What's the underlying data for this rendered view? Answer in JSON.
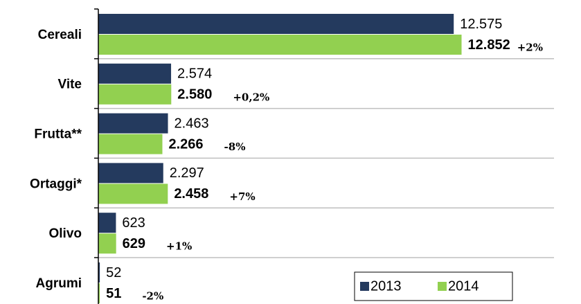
{
  "chart_data": {
    "type": "barh",
    "categories": [
      "Cereali",
      "Vite",
      "Frutta**",
      "Ortaggi*",
      "Olivo",
      "Agrumi"
    ],
    "series": [
      {
        "name": "2013",
        "color": "#243a5e",
        "values": [
          12575,
          2574,
          2463,
          2297,
          623,
          52
        ],
        "value_labels": [
          "12.575",
          "2.574",
          "2.463",
          "2.297",
          "623",
          "52"
        ]
      },
      {
        "name": "2014",
        "color": "#92d050",
        "values": [
          12852,
          2580,
          2266,
          2458,
          629,
          51
        ],
        "value_labels": [
          "12.852",
          "2.580",
          "2.266",
          "2.458",
          "629",
          "51"
        ]
      }
    ],
    "annotations": [
      "+2%",
      "+0,2%",
      "-8%",
      "+7%",
      "+1%",
      "-2%"
    ],
    "xlim": [
      0,
      16000
    ],
    "grid": true,
    "legend": "lower right"
  }
}
